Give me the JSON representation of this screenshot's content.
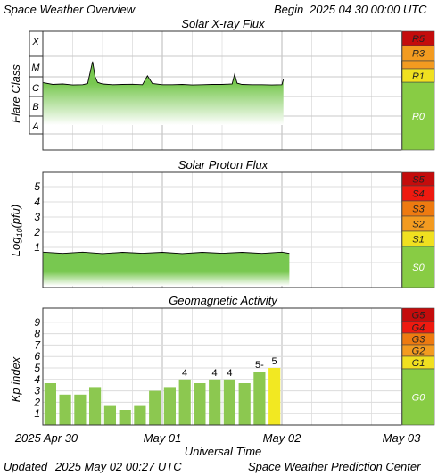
{
  "header": {
    "title": "Space Weather Overview",
    "begin_label": "Begin",
    "begin_date": "2025 04 30 00:00 UTC"
  },
  "footer": {
    "updated_label": "Updated",
    "updated_date": "2025 May 02 00:27 UTC",
    "credit": "Space Weather Prediction Center"
  },
  "x_axis": {
    "label": "Universal Time",
    "ticks": [
      "2025 Apr 30",
      "May 01",
      "May 02",
      "May 03"
    ]
  },
  "colors": {
    "fill_green": "#78c850",
    "scale_green": "#88cc44",
    "scale_yellow": "#f0e020",
    "scale_orange": "#f39b20",
    "scale_darkorange": "#ee7a10",
    "scale_red": "#ee1a10",
    "scale_darkred": "#c40c0c",
    "kp_bar_green": "#8cc850",
    "kp_bar_yellow": "#f2e822"
  },
  "chart_data": [
    {
      "type": "line",
      "title": "Solar X-ray Flux",
      "ylabel": "Flare Class",
      "y_classes": [
        "X",
        "M",
        "C",
        "B",
        "A"
      ],
      "x_unit": "hours since 2025 Apr 30 00:00 UTC",
      "xlim": [
        0,
        72
      ],
      "series": [
        {
          "x": [
            0,
            2,
            4,
            6,
            8,
            9,
            10,
            10.5,
            11,
            12,
            14,
            16,
            18,
            20,
            21,
            22,
            24,
            26,
            28,
            30,
            32,
            34,
            36,
            38,
            38.5,
            39,
            40,
            42,
            44,
            46,
            48,
            48.3
          ],
          "y": [
            4.5e-06,
            3.6e-06,
            3.8e-06,
            3.4e-06,
            3.5e-06,
            4e-06,
            5.5e-05,
            9e-06,
            4.6e-06,
            3.8e-06,
            3.5e-06,
            3.6e-06,
            3.7e-06,
            3.5e-06,
            1e-05,
            4e-06,
            3.5e-06,
            3.5e-06,
            3.6e-06,
            3.4e-06,
            3.5e-06,
            3.6e-06,
            3.6e-06,
            3.8e-06,
            1.2e-05,
            4.2e-06,
            3.6e-06,
            3.5e-06,
            3.5e-06,
            3.4e-06,
            3.5e-06,
            6.5e-06
          ]
        }
      ],
      "scale_levels": [
        "R5",
        "R3",
        "R1",
        "R0"
      ]
    },
    {
      "type": "line",
      "title": "Solar Proton Flux",
      "ylabel": "Log10(pfu)",
      "ylabel_parts": [
        "Log",
        "10",
        "(pfu)"
      ],
      "y_ticks": [
        "1",
        "2",
        "3",
        "4",
        "5"
      ],
      "xlim": [
        0,
        72
      ],
      "series": [
        {
          "x": [
            0,
            4,
            8,
            12,
            16,
            20,
            24,
            28,
            32,
            36,
            40,
            44,
            48,
            49.5
          ],
          "y": [
            -0.85,
            -0.86,
            -0.85,
            -0.87,
            -0.86,
            -0.85,
            -0.86,
            -0.87,
            -0.86,
            -0.85,
            -0.86,
            -0.86,
            -0.85,
            -0.86
          ]
        }
      ],
      "scale_levels": [
        "S5",
        "S4",
        "S3",
        "S2",
        "S1",
        "S0"
      ]
    },
    {
      "type": "bar",
      "title": "Geomagnetic Activity",
      "ylabel": "Kp index",
      "y_ticks": [
        "1",
        "2",
        "3",
        "4",
        "5",
        "6",
        "7",
        "8",
        "9"
      ],
      "ylim": [
        0,
        10
      ],
      "x_unit": "3-hour intervals since 2025 Apr 30 00:00 UTC",
      "values": [
        3.67,
        2.67,
        2.67,
        3.33,
        1.67,
        1.33,
        1.67,
        3.0,
        3.33,
        4.0,
        3.67,
        4.0,
        4.0,
        3.67,
        4.67,
        5.0
      ],
      "bar_labels": [
        "",
        "",
        "",
        "",
        "",
        "",
        "",
        "",
        "",
        "4",
        "",
        "4",
        "4",
        "",
        "5-",
        "5"
      ],
      "scale_levels": [
        "G5",
        "G4",
        "G3",
        "G2",
        "G1",
        "G0"
      ]
    }
  ]
}
